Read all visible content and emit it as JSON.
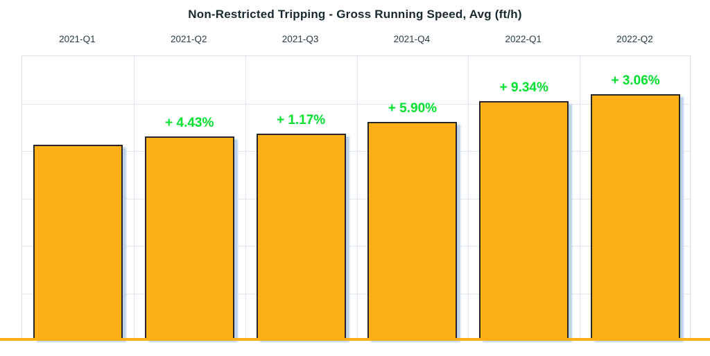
{
  "chart_data": {
    "type": "bar",
    "title": "Non-Restricted Tripping - Gross Running Speed, Avg (ft/h)",
    "categories": [
      "2021-Q1",
      "2021-Q2",
      "2021-Q3",
      "2021-Q4",
      "2022-Q1",
      "2022-Q2"
    ],
    "series": [
      {
        "name": "Gross Running Speed, Avg (ft/h)",
        "values_relative": [
          100,
          104.43,
          105.65,
          111.89,
          122.34,
          126.08
        ],
        "value_basis": "no numeric y-axis shown; values normalized so 2021-Q1 = 100",
        "data_labels": [
          "",
          "+ 4.43%",
          "+ 1.17%",
          "+ 5.90%",
          "+ 9.34%",
          "+ 3.06%"
        ]
      }
    ],
    "xlabel": "",
    "ylabel": "",
    "ylim": [
      0,
      146.3
    ],
    "grid": "on",
    "legend": "none",
    "x_labels_position": "top"
  },
  "colors": {
    "background": "#FFFFFF",
    "bar_fill": "#FCB016",
    "bar_border": "#272727",
    "bar_shadow": "#BCD2EA",
    "gridline": "#DEE7F0",
    "plot_border": "#D9E2EC",
    "title_text": "#17292E",
    "category_text": "#263C43",
    "pct_label": "#00E12F",
    "baseline": "#FCB016"
  }
}
